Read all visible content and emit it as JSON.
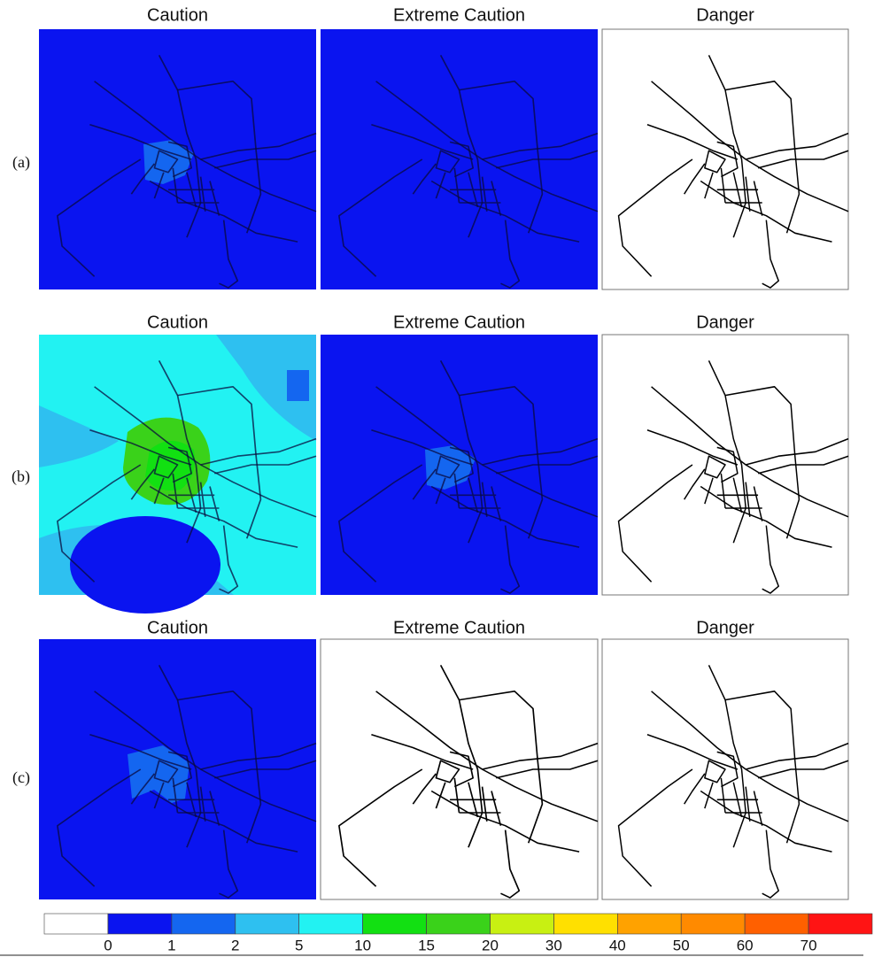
{
  "rows": [
    {
      "label": "(a)",
      "panels": [
        "Caution",
        "Extreme Caution",
        "Danger"
      ]
    },
    {
      "label": "(b)",
      "panels": [
        "Caution",
        "Extreme Caution",
        "Danger"
      ]
    },
    {
      "label": "(c)",
      "panels": [
        "Caution",
        "Extreme Caution",
        "Danger"
      ]
    }
  ],
  "colorbar": {
    "colors": [
      "#ffffff",
      "#0a14f0",
      "#1466f0",
      "#2ec0f0",
      "#22f2f2",
      "#12e012",
      "#3ad21a",
      "#c8f012",
      "#ffe000",
      "#ffa200",
      "#ff8a00",
      "#ff6000",
      "#ff1414"
    ],
    "ticks": [
      0,
      1,
      2,
      5,
      10,
      15,
      20,
      30,
      40,
      50,
      60,
      70
    ]
  }
}
